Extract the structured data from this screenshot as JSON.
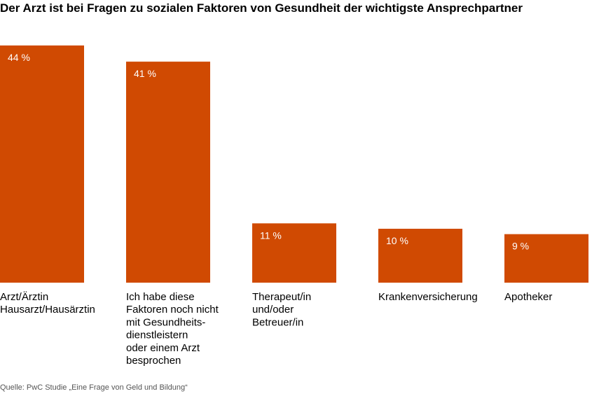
{
  "title": "Der Arzt ist bei Fragen zu sozialen Faktoren von Gesundheit der wichtigste Ansprechpartner",
  "source": "Quelle: PwC Studie „Eine Frage von Geld und Bildung“",
  "colors": {
    "bar": "#d04a02",
    "label": "#ffffff",
    "text": "#000000"
  },
  "chart_data": {
    "type": "bar",
    "title": "Der Arzt ist bei Fragen zu sozialen Faktoren von Gesundheit der wichtigste Ansprechpartner",
    "categories": [
      [
        "Arzt/Ärztin",
        "Hausarzt/Hausärztin"
      ],
      [
        "Ich habe diese",
        "Faktoren noch nicht",
        "mit Gesundheits-",
        "dienstleistern",
        "oder einem Arzt",
        "besprochen"
      ],
      [
        "Therapeut/in",
        "und/oder",
        "Betreuer/in"
      ],
      [
        "Krankenversicherung"
      ],
      [
        "Apotheker"
      ]
    ],
    "values": [
      44,
      41,
      11,
      10,
      9
    ],
    "value_labels": [
      "44 %",
      "41 %",
      "11 %",
      "10 %",
      "9 %"
    ],
    "unit": "%",
    "ylim": [
      0,
      44
    ],
    "xlabel": "",
    "ylabel": "",
    "grid": false,
    "legend": "none"
  }
}
